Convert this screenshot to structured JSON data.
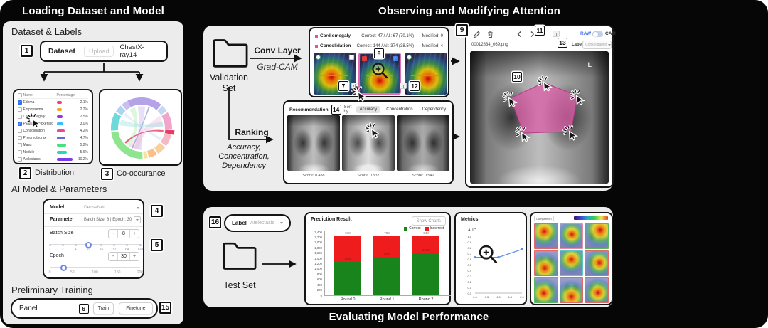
{
  "titles": {
    "left": "Loading Dataset and Model",
    "top_right": "Observing and Modifying Attention",
    "bottom_right": "Evaluating Model Performance"
  },
  "badges": {
    "b1": "1",
    "b2": "2",
    "b3": "3",
    "b4": "4",
    "b5": "5",
    "b6": "6",
    "b7": "7",
    "b8": "8",
    "b9": "9",
    "b10": "10",
    "b11": "11",
    "b12": "12",
    "b13": "13",
    "b14": "14",
    "b15": "15",
    "b16": "16"
  },
  "left_panel": {
    "dataset_heading": "Dataset & Labels",
    "dataset_box": {
      "dataset_label": "Dataset",
      "upload_label": "Upload",
      "dataset_name": "ChestX-ray14"
    },
    "distribution": {
      "caption": "Distribution",
      "table": {
        "headers": [
          "Name",
          "Percentage"
        ],
        "rows": [
          {
            "name": "Edema",
            "checked": true,
            "color": "#f43f6f",
            "pct": 2.1
          },
          {
            "name": "Emphysema",
            "checked": false,
            "color": "#f5a623",
            "pct": 2.2
          },
          {
            "name": "Cardiomegaly",
            "checked": false,
            "color": "#9333ea",
            "pct": 2.5
          },
          {
            "name": "Pleural_Thickening",
            "checked": true,
            "color": "#38bdf8",
            "pct": 3.0
          },
          {
            "name": "Consolidation",
            "checked": false,
            "color": "#ec4899",
            "pct": 4.2
          },
          {
            "name": "Pneumothorax",
            "checked": false,
            "color": "#6366f1",
            "pct": 4.7
          },
          {
            "name": "Mass",
            "checked": false,
            "color": "#4ade80",
            "pct": 5.2
          },
          {
            "name": "Nodule",
            "checked": false,
            "color": "#2dd4bf",
            "pct": 5.6
          },
          {
            "name": "Atelectasis",
            "checked": false,
            "color": "#7c3aed",
            "pct": 10.2
          }
        ]
      }
    },
    "co_occurrence": {
      "caption": "Co-occurance",
      "arc_colors": [
        "#b5a3e8",
        "#c5d8f2",
        "#f0a5cb",
        "#e83a63",
        "#f6b8c4",
        "#f9cfa0",
        "#fbbf8a",
        "#f5e3a0",
        "#8fe48f",
        "#6fd8d8",
        "#aed4f2",
        "#c9c0ee"
      ]
    },
    "model_heading": "AI Model & Parameters",
    "model_panel": {
      "model_label": "Model",
      "model_value": "DenseNet",
      "parameter_label": "Parameter",
      "parameter_value": "Batch Size: 8 | Epoch: 30",
      "batch": {
        "label": "Batch Size",
        "value": "8",
        "minus": "-",
        "plus": "+",
        "ticks": [
          "1",
          "2",
          "4",
          "8",
          "16",
          "32",
          "64",
          "128"
        ],
        "active_index": 3
      },
      "epoch": {
        "label": "Epoch",
        "value": "30",
        "minus": "-",
        "plus": "+",
        "ticks": [
          "0",
          "50",
          "100",
          "150",
          "200"
        ],
        "fraction": 0.15
      }
    },
    "training_heading": "Preliminary Training",
    "training_bar": {
      "panel_label": "Panel",
      "train_label": "Train",
      "finetune_label": "Finetune"
    }
  },
  "attention_panel": {
    "validation_set": "Validation Set",
    "conv_arrow": {
      "line1": "Conv Layer",
      "line2": "Grad-CAM"
    },
    "ranking_arrow": {
      "line1": "Ranking",
      "line2": "Accuracy,",
      "line3": "Concentration,",
      "line4": "Dependency"
    },
    "gradcam_card": {
      "rows": [
        {
          "label": "Cardiomegaly",
          "stats": "Correct: 47 / All: 67 (70.1%)",
          "modified": "Modified: 0"
        },
        {
          "label": "Consolidation",
          "stats": "Correct: 144 / All: 374 (38.5%)",
          "modified": "Modified: 4"
        }
      ],
      "bullet_color": "#e351a6"
    },
    "recommendation_card": {
      "title": "Recommendation",
      "sort_by": "Sort by",
      "tabs": [
        "Accuracy",
        "Concentration",
        "Dependency"
      ],
      "active_tab": "Accuracy",
      "items": [
        {
          "score": "Score: 0.488"
        },
        {
          "score": "Score: 0.537"
        },
        {
          "score": "Score: 0.542"
        }
      ]
    },
    "viewer": {
      "filename": "00012834_069.png",
      "label_text": "Label",
      "label_value": "Consolidation",
      "raw": "RAW",
      "cam": "CAM",
      "l_marker": "L",
      "polygon_color": "#d95fa8"
    }
  },
  "evaluation_panel": {
    "label_box": {
      "label": "Label",
      "value": "Atelectasis"
    },
    "test_set": "Test Set",
    "prediction_card": {
      "title": "Prediction Result",
      "show_charts": "Show Charts",
      "legend": [
        "Correct",
        "Incorrect"
      ]
    },
    "metrics_card": {
      "title": "Metrics",
      "axis_label": "AUC"
    },
    "comparison_card": {
      "title": "Comparison",
      "tile_border_colors": [
        "#e06a6a",
        "#e58ca8",
        "#5cb85c",
        "#e06a6a",
        "#5cc8c0",
        "#e06a6a",
        "#5cb85c",
        "#e06a6a",
        "#e06a6a"
      ]
    }
  },
  "chart_data": [
    {
      "type": "bar",
      "stacked": true,
      "title": "Prediction Result",
      "categories": [
        "Round 0",
        "Round 1",
        "Round 2"
      ],
      "series": [
        {
          "name": "Correct",
          "color": "#18841b",
          "values": [
            1265,
            1455,
            1595
          ]
        },
        {
          "name": "Incorrect",
          "color": "#ee1c1c",
          "values": [
            978,
            788,
            648
          ]
        }
      ],
      "ylim": [
        0,
        2400
      ],
      "ytick_step": 200,
      "legend_position": "top-right",
      "grid": false
    },
    {
      "type": "line",
      "title": "Metrics",
      "ylabel": "AUC",
      "x": [
        0,
        1,
        2
      ],
      "y": [
        0.63,
        0.63,
        0.77
      ],
      "xlim": [
        0,
        2
      ],
      "ylim": [
        0,
        1
      ],
      "xticks": [
        0,
        0.5,
        1,
        1.5,
        2
      ],
      "ytick_step": 0.1,
      "line_color": "#5b8def"
    }
  ]
}
